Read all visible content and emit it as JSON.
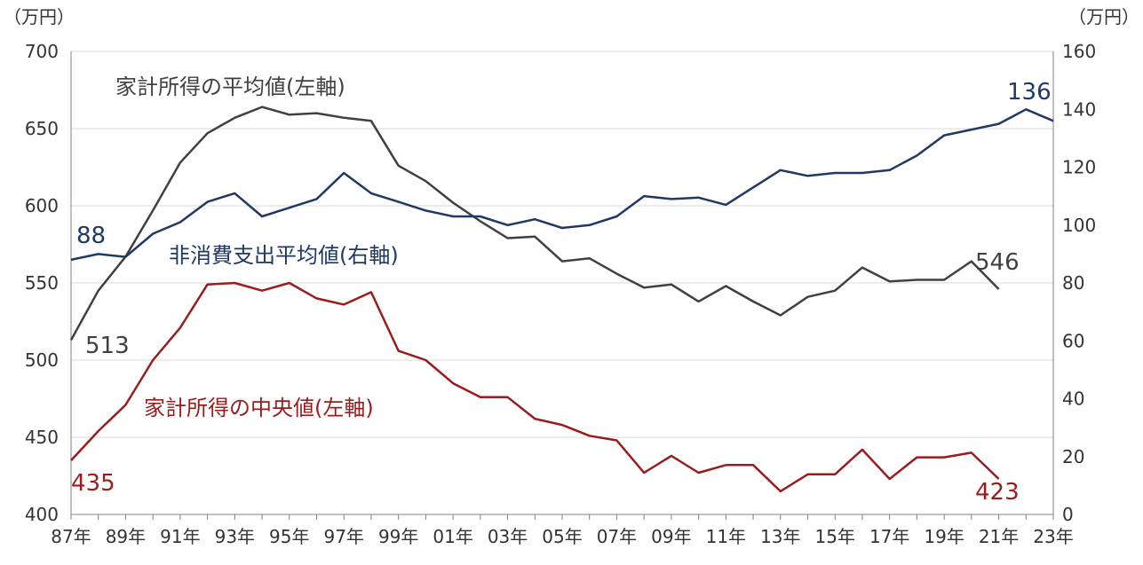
{
  "chart_data": {
    "type": "line",
    "left_axis": {
      "unit": "（万円）",
      "ylim": [
        400,
        700
      ],
      "ticks": [
        400,
        450,
        500,
        550,
        600,
        650,
        700
      ]
    },
    "right_axis": {
      "unit": "（万円）",
      "ylim": [
        0,
        160
      ],
      "ticks": [
        0,
        20,
        40,
        60,
        80,
        100,
        120,
        140,
        160
      ]
    },
    "x": [
      1987,
      1988,
      1989,
      1990,
      1991,
      1992,
      1993,
      1994,
      1995,
      1996,
      1997,
      1998,
      1999,
      2000,
      2001,
      2002,
      2003,
      2004,
      2005,
      2006,
      2007,
      2008,
      2009,
      2010,
      2011,
      2012,
      2013,
      2014,
      2015,
      2016,
      2017,
      2018,
      2019,
      2020,
      2021,
      2022,
      2023
    ],
    "x_tick_labels": [
      "87年",
      "89年",
      "91年",
      "93年",
      "95年",
      "97年",
      "99年",
      "01年",
      "03年",
      "05年",
      "07年",
      "09年",
      "11年",
      "13年",
      "15年",
      "17年",
      "19年",
      "21年",
      "23年"
    ],
    "grid": true,
    "series": [
      {
        "name": "家計所得の平均値(左軸)",
        "axis": "left",
        "color": "#404040",
        "values": [
          513,
          545,
          567,
          597,
          628,
          647,
          657,
          664,
          659,
          660,
          657,
          655,
          626,
          616,
          602,
          590,
          579,
          580,
          564,
          566,
          556,
          547,
          549,
          538,
          548,
          538,
          529,
          541,
          545,
          560,
          551,
          552,
          552,
          564,
          546,
          null,
          null
        ],
        "start_label": "513",
        "end_label": "546"
      },
      {
        "name": "家計所得の中央値(左軸)",
        "axis": "left",
        "color": "#9b1c1c",
        "values": [
          435,
          454,
          471,
          500,
          521,
          549,
          550,
          545,
          550,
          540,
          536,
          544,
          506,
          500,
          485,
          476,
          476,
          462,
          458,
          451,
          448,
          427,
          438,
          427,
          432,
          432,
          415,
          426,
          426,
          442,
          423,
          437,
          437,
          440,
          423,
          null,
          null
        ],
        "start_label": "435",
        "end_label": "423"
      },
      {
        "name": "非消費支出平均値(右軸)",
        "axis": "right",
        "color": "#1f3864",
        "values": [
          88,
          90,
          89,
          97,
          101,
          108,
          111,
          103,
          106,
          109,
          118,
          111,
          108,
          105,
          103,
          103,
          100,
          102,
          99,
          100,
          103,
          110,
          109,
          109.5,
          107,
          113,
          119,
          117,
          118,
          118,
          119,
          124,
          131,
          133,
          135,
          140,
          136
        ],
        "start_label": "88",
        "end_label": "136"
      }
    ]
  }
}
